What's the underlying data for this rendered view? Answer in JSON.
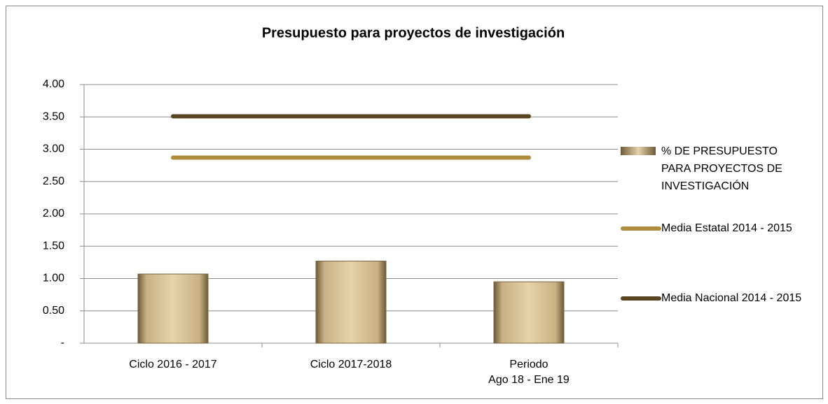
{
  "chart_data": {
    "type": "bar",
    "title": "Presupuesto para proyectos de investigación",
    "categories": [
      "Ciclo 2016 - 2017",
      "Ciclo 2017-2018",
      "Periodo\nAgo 18 - Ene 19"
    ],
    "series": [
      {
        "name": "% DE PRESUPUESTO PARA PROYECTOS DE INVESTIGACIÓN",
        "type": "bar",
        "color": "#e6d3a8",
        "values": [
          1.07,
          1.27,
          0.95
        ]
      },
      {
        "name": "Media Estatal 2014 - 2015",
        "type": "line",
        "color": "#b08d3e",
        "values": [
          2.87,
          2.87,
          2.87
        ]
      },
      {
        "name": "Media Nacional 2014 - 2015",
        "type": "line",
        "color": "#5a4522",
        "values": [
          3.51,
          3.51,
          3.51
        ]
      }
    ],
    "ylim": [
      0,
      4
    ],
    "yticks": [
      {
        "value": 0,
        "label": "-"
      },
      {
        "value": 0.5,
        "label": "0.50"
      },
      {
        "value": 1,
        "label": "1.00"
      },
      {
        "value": 1.5,
        "label": "1.50"
      },
      {
        "value": 2,
        "label": "2.00"
      },
      {
        "value": 2.5,
        "label": "2.50"
      },
      {
        "value": 3,
        "label": "3.00"
      },
      {
        "value": 3.5,
        "label": "3.50"
      },
      {
        "value": 4,
        "label": "4.00"
      }
    ],
    "grid": true
  }
}
